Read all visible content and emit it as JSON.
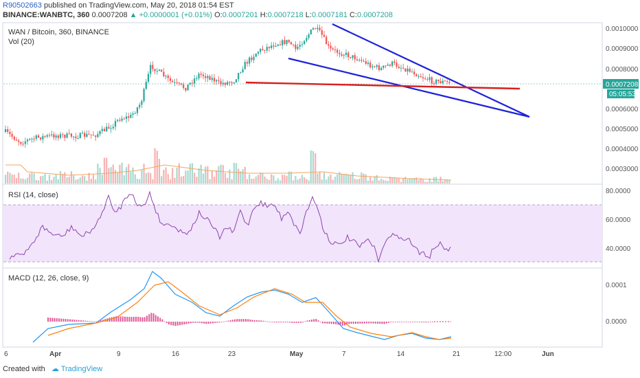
{
  "header": {
    "author": "R90502663",
    "published_text": "published on TradingView.com, May 20, 2018 01:54 EST",
    "symbol": "BINANCE:WANBTC, 360",
    "last": "0.0007208",
    "change": "+0.0000001 (+0.01%)",
    "ohlc": {
      "o": "0.0007201",
      "h": "0.0007218",
      "l": "0.0007181",
      "c": "0.0007208"
    }
  },
  "price_pane": {
    "title": "WAN / Bitcoin, 360, BINANCE",
    "vol_label": "Vol (20)",
    "y_ticks": [
      "0.0010000",
      "0.0009000",
      "0.0008000",
      "0.0006000",
      "0.0005000",
      "0.0004000",
      "0.0003000"
    ],
    "last_price": "0.0007208",
    "countdown": "05:05:53"
  },
  "rsi_pane": {
    "label": "RSI (14, close)",
    "y_ticks": [
      "80.0000",
      "60.0000",
      "40.0000"
    ]
  },
  "macd_pane": {
    "label": "MACD (12, 26, close, 9)",
    "y_ticks": [
      "0.0001",
      "0.0000"
    ]
  },
  "time_axis": {
    "labels": [
      "6",
      "Apr",
      "9",
      "16",
      "23",
      "May",
      "7",
      "14",
      "21",
      "12:00",
      "Jun"
    ]
  },
  "footer": {
    "created_with": "Created with",
    "brand": "TradingView"
  },
  "colors": {
    "up": "#26a69a",
    "down": "#ef5350",
    "trend_blue": "#1e22d8",
    "trend_red": "#d81e1e",
    "rsi": "#8e44ad",
    "macd": "#2196f3",
    "signal": "#ff7f0e",
    "hist": "#e91e63"
  }
}
